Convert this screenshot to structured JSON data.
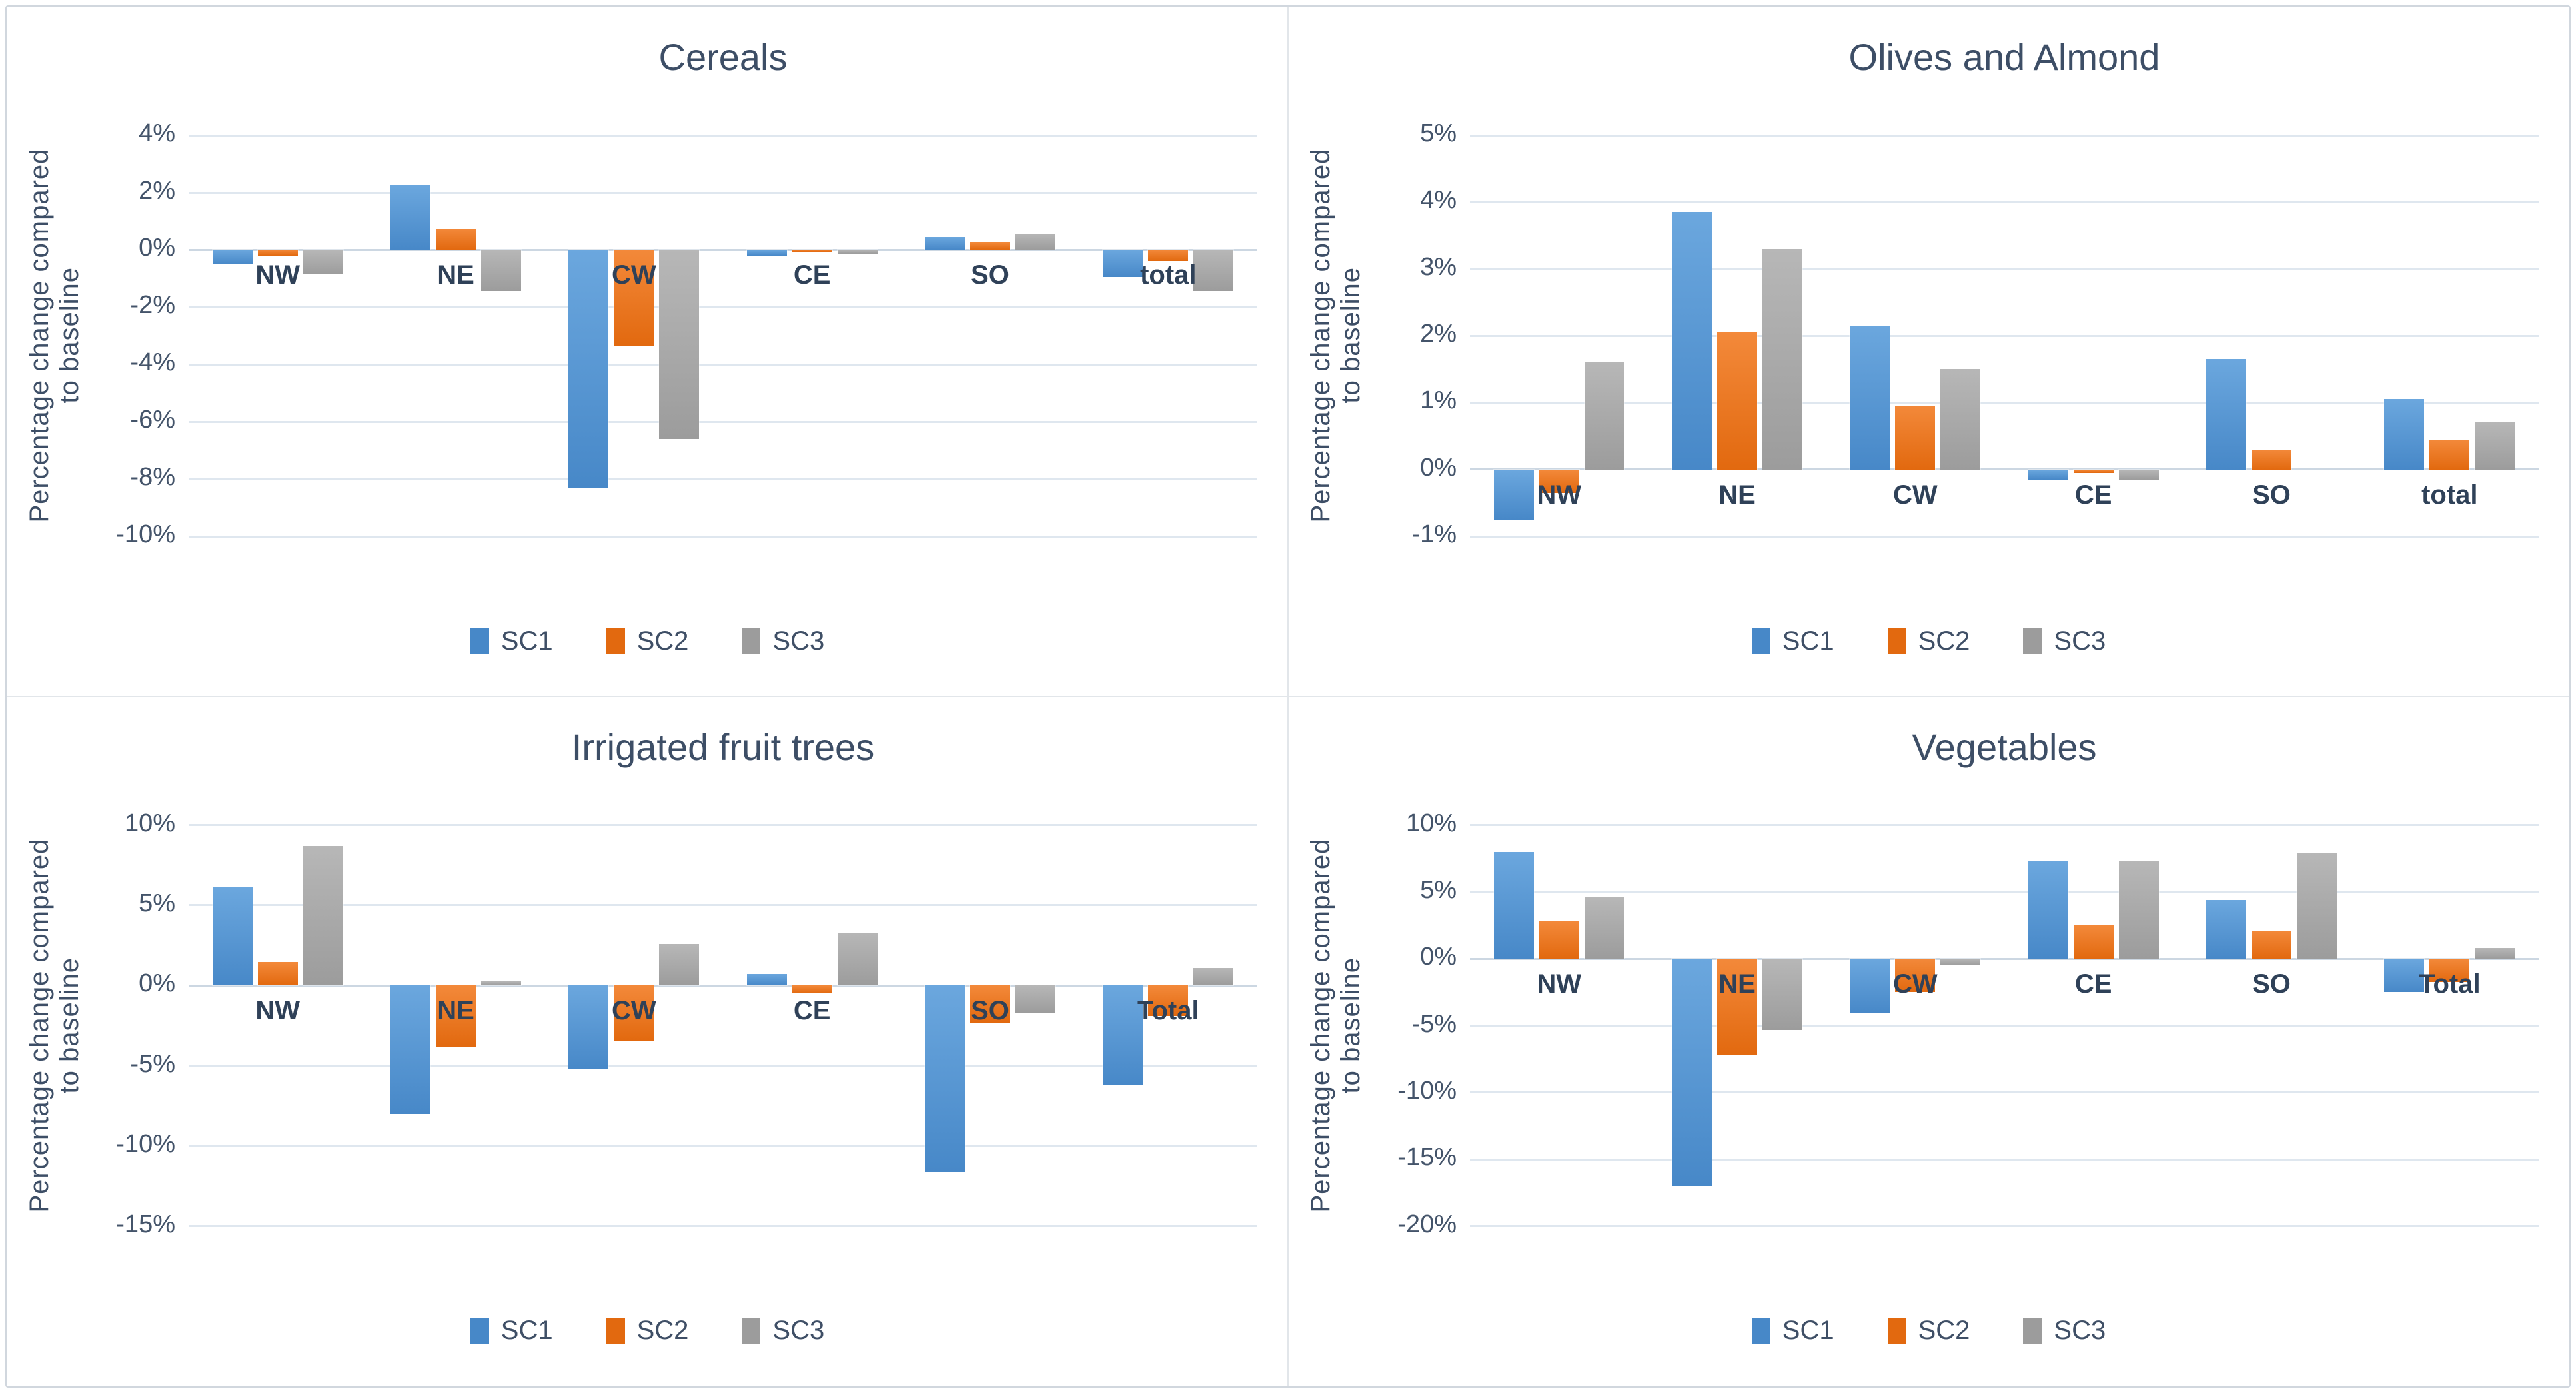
{
  "figure": {
    "background": "#ffffff",
    "border_color": "#d1d7de",
    "panel_border_color": "#e2e6ea",
    "gridline_color": "#dfe7ef",
    "zero_axis_color": "#ccd7e2",
    "title_text_color": "#3d4e66",
    "tick_text_color": "#44546a",
    "category_text_color": "#2f4158",
    "legend_text_color": "#3f4f66"
  },
  "chart_data": [
    {
      "type": "bar",
      "title": "Cereals",
      "ylabel": "Percentage change compared to baseline",
      "categories": [
        "NW",
        "NE",
        "CW",
        "CE",
        "SO",
        "total"
      ],
      "ylim": [
        -10,
        4
      ],
      "yticks": [
        4,
        2,
        0,
        -2,
        -4,
        -6,
        -8,
        -10
      ],
      "ytick_suffix": "%",
      "grid": true,
      "legend_position": "bottom",
      "series": [
        {
          "name": "SC1",
          "color": "#4788c8",
          "color_light": "#6ba7de",
          "values": [
            -0.5,
            2.25,
            -8.3,
            -0.2,
            0.45,
            -0.95
          ]
        },
        {
          "name": "SC2",
          "color": "#e2690f",
          "color_light": "#f3893a",
          "values": [
            -0.2,
            0.75,
            -3.35,
            -0.05,
            0.25,
            -0.4
          ]
        },
        {
          "name": "SC3",
          "color": "#9c9c9c",
          "color_light": "#b7b7b7",
          "values": [
            -0.85,
            -1.45,
            -6.6,
            -0.15,
            0.55,
            -1.45
          ]
        }
      ]
    },
    {
      "type": "bar",
      "title": "Olives and Almond",
      "ylabel": "Percentage change compared to baseline",
      "categories": [
        "NW",
        "NE",
        "CW",
        "CE",
        "SO",
        "total"
      ],
      "ylim": [
        -1,
        5
      ],
      "yticks": [
        5,
        4,
        3,
        2,
        1,
        0,
        -1
      ],
      "ytick_suffix": "%",
      "grid": true,
      "legend_position": "bottom",
      "series": [
        {
          "name": "SC1",
          "color": "#4788c8",
          "color_light": "#6ba7de",
          "values": [
            -0.75,
            3.85,
            2.15,
            -0.15,
            1.65,
            1.05
          ]
        },
        {
          "name": "SC2",
          "color": "#e2690f",
          "color_light": "#f3893a",
          "values": [
            -0.35,
            2.05,
            0.95,
            -0.05,
            0.3,
            0.45
          ]
        },
        {
          "name": "SC3",
          "color": "#9c9c9c",
          "color_light": "#b7b7b7",
          "values": [
            1.6,
            3.3,
            1.5,
            -0.15,
            0,
            0.7
          ]
        }
      ]
    },
    {
      "type": "bar",
      "title": "Irrigated fruit trees",
      "ylabel": "Percentage change compared to baseline",
      "categories": [
        "NW",
        "NE",
        "CW",
        "CE",
        "SO",
        "Total"
      ],
      "ylim": [
        -15,
        10
      ],
      "yticks": [
        10,
        5,
        0,
        -5,
        -10,
        -15
      ],
      "ytick_suffix": "%",
      "grid": true,
      "legend_position": "bottom",
      "series": [
        {
          "name": "SC1",
          "color": "#4788c8",
          "color_light": "#6ba7de",
          "values": [
            6.1,
            -8.0,
            -5.2,
            0.7,
            -11.6,
            -6.2
          ]
        },
        {
          "name": "SC2",
          "color": "#e2690f",
          "color_light": "#f3893a",
          "values": [
            1.45,
            -3.8,
            -3.45,
            -0.5,
            -2.3,
            -1.9
          ]
        },
        {
          "name": "SC3",
          "color": "#9c9c9c",
          "color_light": "#b7b7b7",
          "values": [
            8.7,
            0.25,
            2.6,
            3.3,
            -1.7,
            1.1
          ]
        }
      ]
    },
    {
      "type": "bar",
      "title": "Vegetables",
      "ylabel": "Percentage change compared to baseline",
      "categories": [
        "NW",
        "NE",
        "CW",
        "CE",
        "SO",
        "Total"
      ],
      "ylim": [
        -20,
        10
      ],
      "yticks": [
        10,
        5,
        0,
        -5,
        -10,
        -15,
        -20
      ],
      "ytick_suffix": "%",
      "grid": true,
      "legend_position": "bottom",
      "series": [
        {
          "name": "SC1",
          "color": "#4788c8",
          "color_light": "#6ba7de",
          "values": [
            8.0,
            -17.0,
            -4.1,
            7.3,
            4.4,
            -2.5
          ]
        },
        {
          "name": "SC2",
          "color": "#e2690f",
          "color_light": "#f3893a",
          "values": [
            2.8,
            -7.2,
            -2.5,
            2.5,
            2.1,
            -1.75
          ]
        },
        {
          "name": "SC3",
          "color": "#9c9c9c",
          "color_light": "#b7b7b7",
          "values": [
            4.6,
            -5.3,
            -0.5,
            7.3,
            7.9,
            0.8
          ]
        }
      ]
    }
  ]
}
